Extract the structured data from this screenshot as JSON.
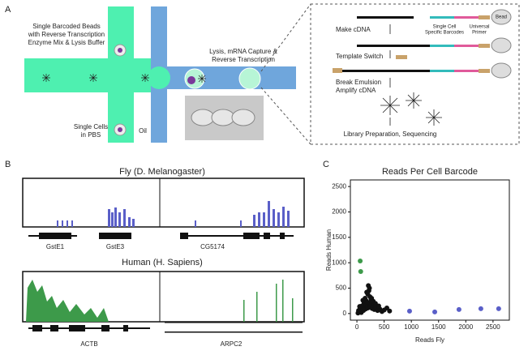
{
  "panel_a": {
    "label": "A",
    "beads_text": [
      "Single Barcoded Beads",
      "with Reverse Transcription",
      "Enzyme Mix & Lysis Buffer"
    ],
    "cells_text": [
      "Single Cells",
      "in PBS"
    ],
    "oil_text": "Oil",
    "lysis_text": [
      "Lysis, mRNA Capture &",
      "Reverse Transcription"
    ],
    "steps": {
      "make_cdna": "Make cDNA",
      "barcodes": [
        "Single Cell",
        "Specific Barcodes"
      ],
      "primer": [
        "Universal",
        "Primer"
      ],
      "bead": "Bead",
      "template_switch": "Template Switch",
      "amplify": [
        "Break Emulsion",
        "Amplify cDNA"
      ],
      "library": "Library Preparation, Sequencing"
    }
  },
  "panel_b": {
    "label": "B",
    "fly_title": "Fly (D.  Melanogaster)",
    "fly_genes": [
      "GstE1",
      "GstE3",
      "CG5174"
    ],
    "human_title": "Human (H. Sapiens)",
    "human_genes": [
      "ACTB",
      "ARPC2"
    ]
  },
  "panel_c_label": "C",
  "chart_data": {
    "type": "scatter",
    "title": "Reads Per Cell Barcode",
    "xlabel": "Reads Fly",
    "ylabel": "Reads Human",
    "xlim": [
      -120,
      2800
    ],
    "ylim": [
      -130,
      2630
    ],
    "xticks": [
      0,
      500,
      1000,
      1500,
      2000,
      2500
    ],
    "yticks": [
      0,
      500,
      1000,
      1500,
      2000,
      2500
    ],
    "series": [
      {
        "color": "#3d9a4a",
        "x": [
          60,
          70
        ],
        "y": [
          1035,
          828
        ]
      },
      {
        "color": "#5a5fc8",
        "x": [
          967,
          1430,
          1875,
          2277,
          2604
        ],
        "y": [
          48,
          32,
          80,
          95,
          95
        ]
      },
      {
        "color": "#111111",
        "x": [
          20,
          40,
          60,
          80,
          100,
          120,
          140,
          160,
          180,
          200,
          220,
          240,
          260,
          280,
          300,
          320,
          350,
          380,
          420,
          460,
          500,
          550,
          600,
          150,
          170,
          200,
          220,
          240,
          180,
          260,
          130,
          90,
          110,
          60,
          300,
          340,
          400,
          30,
          50,
          210,
          230,
          270,
          190
        ],
        "y": [
          10,
          30,
          50,
          20,
          80,
          60,
          120,
          90,
          150,
          110,
          200,
          140,
          180,
          100,
          160,
          80,
          120,
          60,
          90,
          40,
          70,
          110,
          50,
          300,
          250,
          380,
          450,
          330,
          420,
          270,
          200,
          150,
          260,
          100,
          240,
          200,
          150,
          60,
          140,
          550,
          500,
          300,
          220
        ]
      }
    ]
  }
}
